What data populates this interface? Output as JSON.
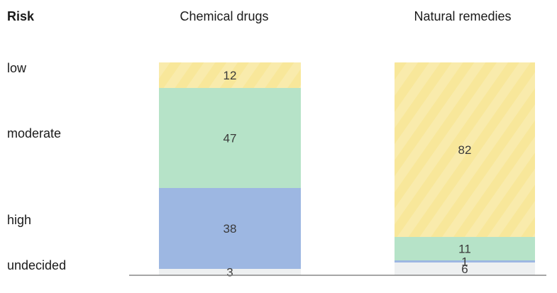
{
  "chart_data": {
    "type": "bar",
    "stacked": true,
    "orientation": "vertical",
    "unit": "percent",
    "title": "",
    "xlabel": "",
    "ylabel": "Risk",
    "ylim": [
      0,
      100
    ],
    "grid": false,
    "legend": "none",
    "categories": [
      "Chemical drugs",
      "Natural remedies"
    ],
    "stack_order_bottom_to_top": [
      "undecided",
      "high",
      "moderate",
      "low"
    ],
    "series": [
      {
        "name": "low",
        "values": [
          12,
          82
        ],
        "color": "#f8e79a"
      },
      {
        "name": "moderate",
        "values": [
          47,
          11
        ],
        "color": "#b6e3c8"
      },
      {
        "name": "high",
        "values": [
          38,
          1
        ],
        "color": "#9db7e2"
      },
      {
        "name": "undecided",
        "values": [
          3,
          6
        ],
        "color": "#eef0f1"
      }
    ],
    "colors": {
      "baseline": "#888888",
      "text": "#1a1a1a",
      "value_text": "#3a3a3a"
    }
  }
}
